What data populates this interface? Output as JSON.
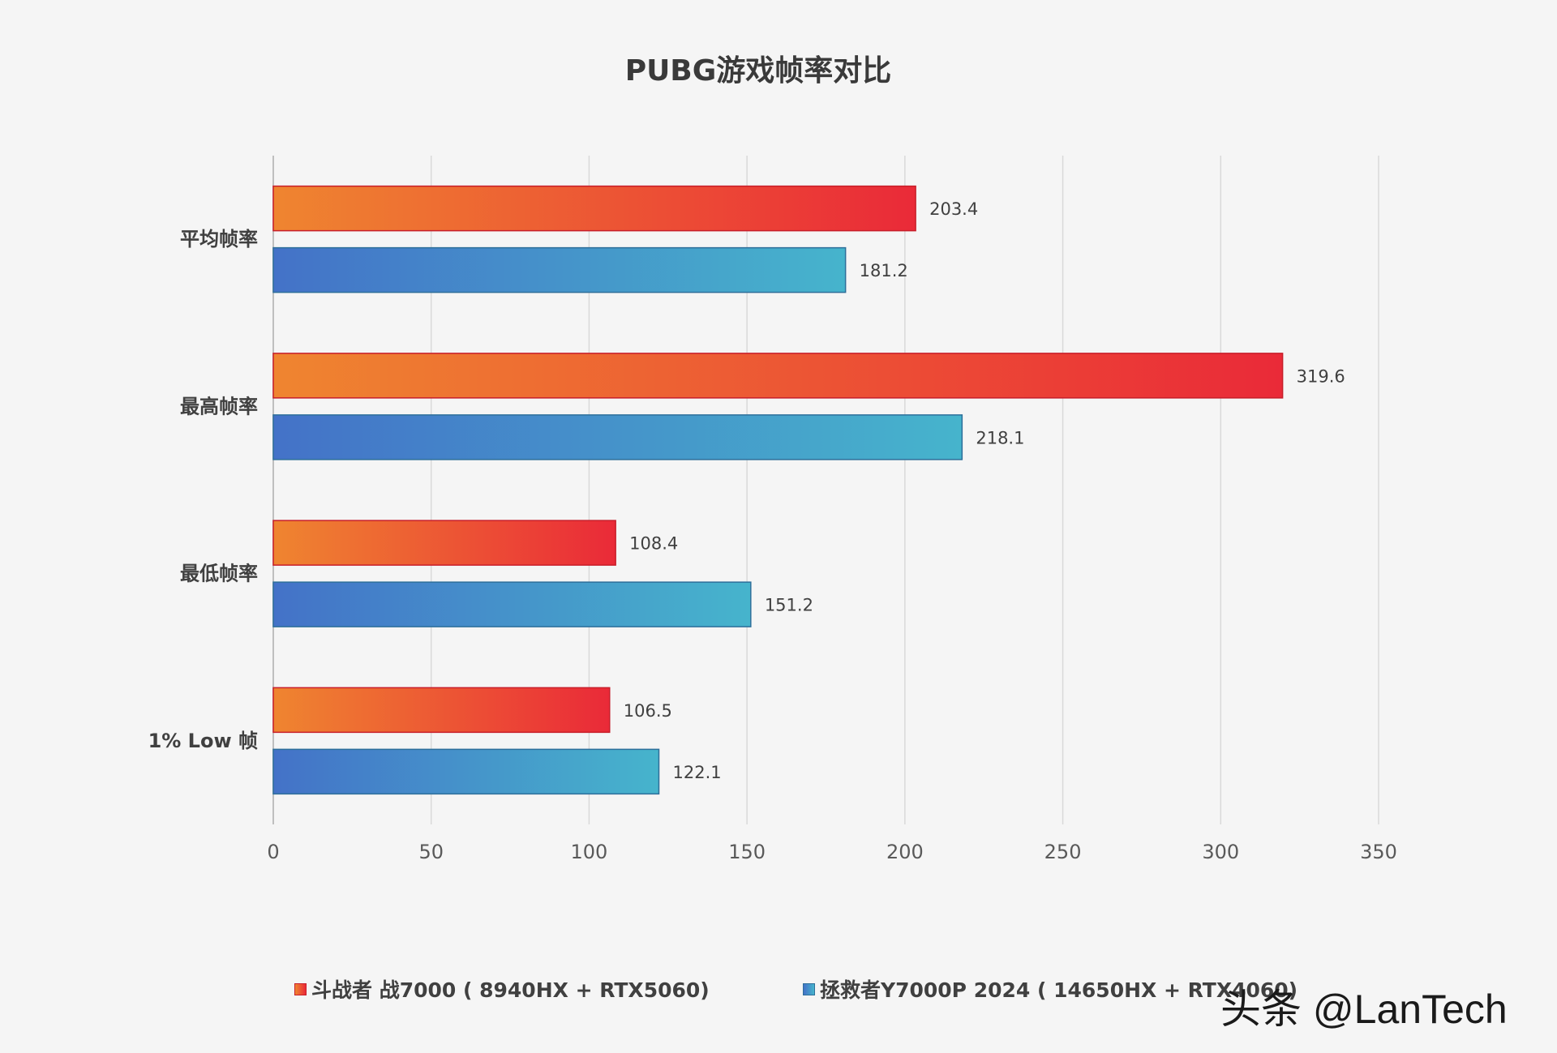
{
  "chart_data": {
    "type": "bar",
    "orientation": "horizontal",
    "title": "PUBG游戏帧率对比",
    "categories": [
      "平均帧率",
      "最高帧率",
      "最低帧率",
      "1% Low 帧"
    ],
    "series": [
      {
        "name": "斗战者 战7000 ( 8940HX + RTX5060)",
        "values": [
          203.4,
          319.6,
          108.4,
          106.5
        ],
        "color_start": "#ef8530",
        "color_end": "#ea2a38",
        "border": "#c81e2a"
      },
      {
        "name": "拯救者Y7000P 2024 ( 14650HX + RTX4060)",
        "values": [
          181.2,
          218.1,
          151.2,
          122.1
        ],
        "color_start": "#4472c8",
        "color_end": "#46b4cc",
        "border": "#2e6f9a"
      }
    ],
    "xlim": [
      0,
      350
    ],
    "xticks": [
      0,
      50,
      100,
      150,
      200,
      250,
      300,
      350
    ],
    "grid": true,
    "legend_position": "bottom"
  },
  "watermark": "头条 @LanTech"
}
